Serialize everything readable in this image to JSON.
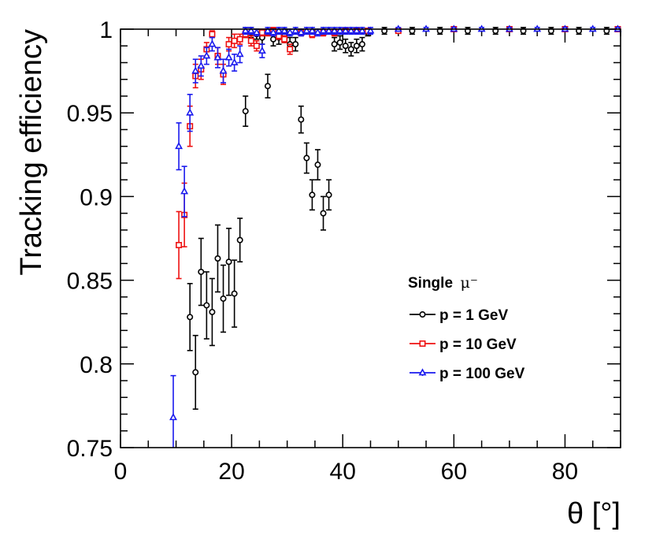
{
  "chart_data": {
    "type": "scatter",
    "title": "",
    "xlabel": "θ [°]",
    "ylabel": "Tracking efficiency",
    "xlim": [
      0,
      90
    ],
    "ylim": [
      0.75,
      1.0
    ],
    "x_ticks": [
      0,
      20,
      40,
      60,
      80
    ],
    "y_ticks": [
      0.75,
      0.8,
      0.85,
      0.9,
      0.95,
      1
    ],
    "x_tick_labels": [
      "0",
      "20",
      "40",
      "60",
      "80"
    ],
    "y_tick_labels": [
      "0.75",
      "0.8",
      "0.85",
      "0.9",
      "0.95",
      "1"
    ],
    "legend": {
      "title": "Single",
      "title_symbol": "μ⁻",
      "position": "center-right"
    },
    "series": [
      {
        "name": "p = 1 GeV",
        "color": "#000000",
        "marker": "circle",
        "x": [
          12.5,
          13.5,
          14.5,
          15.5,
          16.5,
          17.5,
          18.5,
          19.5,
          20.5,
          21.5,
          22.5,
          26.5,
          32.5,
          33.5,
          34.5,
          35.5,
          36.5,
          37.5,
          22.5,
          23.5,
          24.5,
          25.5,
          27.5,
          28.5,
          29.5,
          30.5,
          31.5,
          38.5,
          39.5,
          40.5,
          41.5,
          42.5,
          43.5,
          44.5,
          47.5,
          52.5,
          57.5,
          62.5,
          67.5,
          72.5,
          77.5,
          82.5,
          87.5
        ],
        "values": [
          0.828,
          0.795,
          0.855,
          0.835,
          0.831,
          0.863,
          0.839,
          0.861,
          0.842,
          0.874,
          0.951,
          0.966,
          0.946,
          0.923,
          0.901,
          0.919,
          0.89,
          0.901,
          0.998,
          0.998,
          0.997,
          0.995,
          0.994,
          0.995,
          0.996,
          0.991,
          0.991,
          0.991,
          0.992,
          0.99,
          0.988,
          0.99,
          0.991,
          0.998,
          0.999,
          0.999,
          0.999,
          0.999,
          0.999,
          0.999,
          0.999,
          0.999,
          0.999
        ],
        "errors": [
          0.02,
          0.022,
          0.02,
          0.02,
          0.02,
          0.02,
          0.02,
          0.02,
          0.02,
          0.013,
          0.009,
          0.007,
          0.008,
          0.009,
          0.009,
          0.009,
          0.01,
          0.009,
          0.003,
          0.003,
          0.003,
          0.004,
          0.004,
          0.004,
          0.004,
          0.004,
          0.004,
          0.004,
          0.004,
          0.004,
          0.004,
          0.004,
          0.004,
          0.002,
          0.002,
          0.002,
          0.002,
          0.002,
          0.002,
          0.002,
          0.002,
          0.002,
          0.002
        ]
      },
      {
        "name": "p = 10 GeV",
        "color": "#ee1111",
        "marker": "square",
        "x": [
          10.5,
          11.5,
          12.5,
          13.5,
          14.5,
          15.5,
          16.5,
          17.5,
          18.5,
          19.5,
          20.5,
          21.5,
          22.5,
          23.5,
          24.5,
          25.5,
          26.5,
          27.5,
          28.5,
          29.5,
          30.5,
          32.5,
          34.5,
          36.5,
          38.5,
          40.5,
          42.5,
          44.5,
          50,
          60,
          70,
          80,
          89.5
        ],
        "values": [
          0.871,
          0.889,
          0.942,
          0.972,
          0.976,
          0.988,
          0.997,
          0.984,
          0.973,
          0.991,
          0.993,
          0.994,
          0.997,
          0.993,
          0.99,
          0.998,
          0.998,
          0.999,
          0.996,
          0.994,
          0.988,
          0.998,
          0.997,
          0.998,
          0.998,
          0.999,
          0.999,
          0.999,
          0.999,
          1.0,
          1.0,
          1.0,
          1.0
        ],
        "errors": [
          0.02,
          0.019,
          0.012,
          0.007,
          0.006,
          0.004,
          0.002,
          0.005,
          0.006,
          0.004,
          0.004,
          0.003,
          0.002,
          0.003,
          0.003,
          0.002,
          0.002,
          0.002,
          0.002,
          0.002,
          0.003,
          0.002,
          0.002,
          0.002,
          0.002,
          0.001,
          0.001,
          0.001,
          0.001,
          0.001,
          0.001,
          0.001,
          0.001
        ]
      },
      {
        "name": "p = 100 GeV",
        "color": "#1a1aee",
        "marker": "triangle",
        "x": [
          9.5,
          10.5,
          11.5,
          12.5,
          13.5,
          14.5,
          15.5,
          16.5,
          17.5,
          18.5,
          19.5,
          20.5,
          21.5,
          22.5,
          23.5,
          24.5,
          25.5,
          26.5,
          27.5,
          28.5,
          29.5,
          30.5,
          31.5,
          32.5,
          33.5,
          34.5,
          35.5,
          36.5,
          37.5,
          38.5,
          39.5,
          40.5,
          41.5,
          42.5,
          43.5,
          45,
          50,
          55,
          60,
          65,
          70,
          75,
          80,
          85,
          89.5
        ],
        "values": [
          0.768,
          0.93,
          0.903,
          0.95,
          0.975,
          0.978,
          0.984,
          0.991,
          0.983,
          0.975,
          0.983,
          0.98,
          0.985,
          0.999,
          0.999,
          0.998,
          0.987,
          0.999,
          0.998,
          0.999,
          0.999,
          0.998,
          0.999,
          0.998,
          0.999,
          0.999,
          0.998,
          0.999,
          0.999,
          0.999,
          0.999,
          0.999,
          0.999,
          0.999,
          0.999,
          0.999,
          1.0,
          1.0,
          1.0,
          1.0,
          1.0,
          1.0,
          1.0,
          1.0,
          1.0
        ],
        "errors": [
          0.025,
          0.014,
          0.015,
          0.011,
          0.007,
          0.006,
          0.005,
          0.004,
          0.006,
          0.007,
          0.005,
          0.005,
          0.005,
          0.002,
          0.002,
          0.002,
          0.004,
          0.002,
          0.002,
          0.002,
          0.002,
          0.002,
          0.002,
          0.002,
          0.002,
          0.002,
          0.002,
          0.002,
          0.002,
          0.002,
          0.002,
          0.002,
          0.002,
          0.002,
          0.002,
          0.002,
          0.001,
          0.001,
          0.001,
          0.001,
          0.001,
          0.001,
          0.001,
          0.001,
          0.001
        ]
      }
    ]
  }
}
